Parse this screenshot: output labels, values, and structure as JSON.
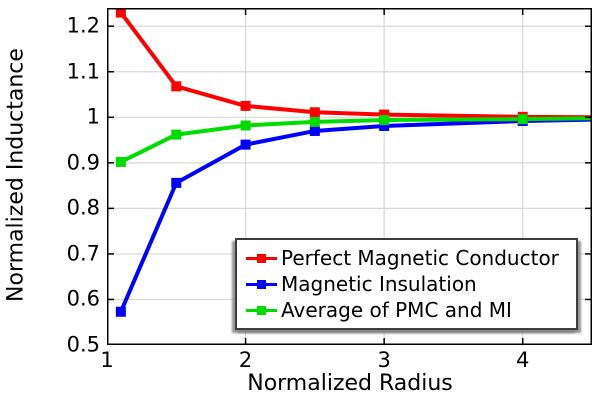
{
  "chart_data": {
    "type": "line",
    "title": "",
    "xlabel": "Normalized Radius",
    "ylabel": "Normalized Inductance",
    "xlim": [
      1,
      4.5
    ],
    "ylim": [
      0.5,
      1.24
    ],
    "grid": true,
    "xticks": [
      1,
      2,
      3,
      4
    ],
    "xtick_labels": [
      "1",
      "2",
      "3",
      "4"
    ],
    "yticks": [
      0.5,
      0.6,
      0.7,
      0.8,
      0.9,
      1.0,
      1.1,
      1.2
    ],
    "ytick_labels": [
      "0.5",
      "0.6",
      "0.7",
      "0.8",
      "0.9",
      "1",
      "1.1",
      "1.2"
    ],
    "x": [
      1.1,
      1.5,
      2,
      2.5,
      3,
      4,
      4.5
    ],
    "series": [
      {
        "name": "Perfect Magnetic Conductor",
        "color": "#ff0000",
        "marker": "square",
        "values": [
          1.23,
          1.068,
          1.025,
          1.011,
          1.006,
          1.001,
          1.0
        ]
      },
      {
        "name": "Magnetic Insulation",
        "color": "#0000ff",
        "marker": "square",
        "values": [
          0.573,
          0.856,
          0.94,
          0.97,
          0.981,
          0.992,
          0.995
        ]
      },
      {
        "name": "Average of PMC and MI",
        "color": "#00dc00",
        "marker": "square",
        "values": [
          0.902,
          0.962,
          0.982,
          0.99,
          0.994,
          0.996,
          0.998
        ]
      }
    ],
    "legend_position": "inside-bottom-right"
  },
  "colors": {
    "background": "#ffffff",
    "grid": "#d8d8d8",
    "axis": "#000000",
    "legend_border": "#3d3d3d",
    "legend_shadow": "#828282"
  }
}
